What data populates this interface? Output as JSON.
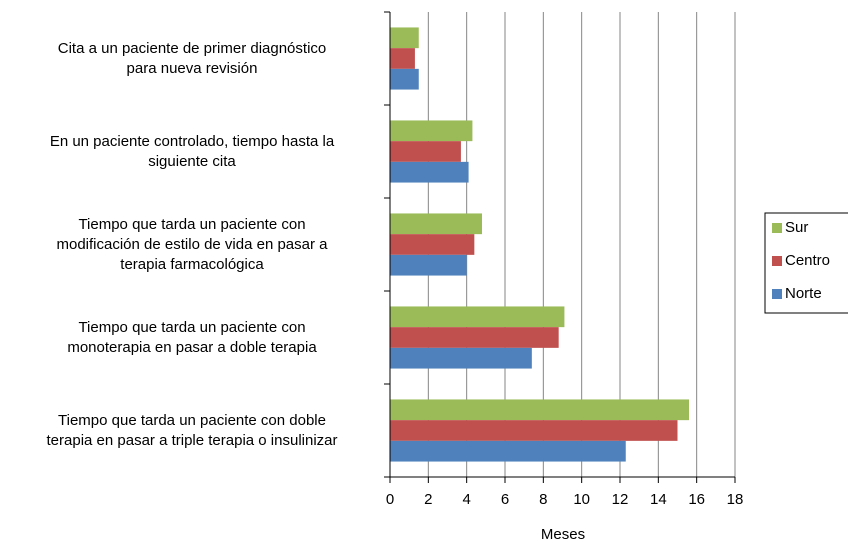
{
  "chart_data": {
    "type": "bar",
    "orientation": "horizontal",
    "categories": [
      "Cita a un paciente de primer diagnóstico\npara nueva revisión",
      "En un paciente controlado, tiempo hasta la\nsiguiente cita",
      "Tiempo que tarda un paciente con\nmodificación de estilo de vida en pasar a\nterapia farmacológica",
      "Tiempo que tarda un paciente con\nmonoterapia en pasar a doble terapia",
      "Tiempo que tarda un paciente con doble\nterapia en pasar a triple terapia o insulinizar"
    ],
    "series": [
      {
        "name": "Sur",
        "color": "#9bbb59",
        "values": [
          1.5,
          4.3,
          4.8,
          9.1,
          15.6
        ]
      },
      {
        "name": "Centro",
        "color": "#c0504d",
        "values": [
          1.3,
          3.7,
          4.4,
          8.8,
          15.0
        ]
      },
      {
        "name": "Norte",
        "color": "#4f81bd",
        "values": [
          1.5,
          4.1,
          4.0,
          7.4,
          12.3
        ]
      }
    ],
    "xlabel": "Meses",
    "xlim": [
      0,
      18
    ],
    "xticks": [
      0,
      2,
      4,
      6,
      8,
      10,
      12,
      14,
      16,
      18
    ],
    "grid": true,
    "legend": "right"
  }
}
